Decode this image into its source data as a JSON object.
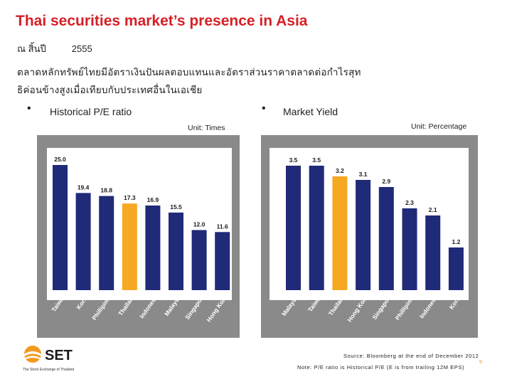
{
  "title": "Thai securities market’s presence in Asia",
  "date_prefix": "ณ สิ้นปี",
  "date_year": "2555",
  "thai_line1": "ตลาดหลักทรัพย์ไทยมีอัตราเงินปันผลตอบแทนและอัตราส่วนราคาตลาดต่อกำไรสุท",
  "thai_line2": "ธิค่อนข้างสูงเมื่อเทียบกับประเทศอื่นในเอเชีย",
  "left_heading": "Historical P/E ratio",
  "right_heading": "Market Yield",
  "left_unit": "Unit: Times",
  "right_unit": "Unit: Percentage",
  "footer_source": "Source: Bloomberg at the end of December 2012",
  "footer_note": "Note: P/E ratio is Historical P/E (E is from trailing 12M EPS)",
  "page_number": "9",
  "logo_text": "SET",
  "logo_tagline": "The Stock Exchange of Thailand",
  "colors": {
    "title": "#d52027",
    "panel": "#8a8a8a",
    "bar": "#1f2a78",
    "highlight": "#f7a823",
    "logo_orange": "#f29a1f"
  },
  "chart_data": [
    {
      "type": "bar",
      "title": "Historical P/E ratio",
      "unit": "Unit: Times",
      "categories": [
        "Taiwan",
        "Korea",
        "Phillipines",
        "Thailand",
        "Indonesia",
        "Malaysia",
        "Singapore",
        "Hong Kong"
      ],
      "values": [
        25.0,
        19.4,
        18.8,
        17.3,
        16.9,
        15.5,
        12.0,
        11.6
      ],
      "labels": [
        "25.0",
        "19.4",
        "18.8",
        "17.3",
        "16.9",
        "15.5",
        "12.0",
        "11.6"
      ],
      "highlight": "Thailand",
      "ylim": [
        0,
        25
      ]
    },
    {
      "type": "bar",
      "title": "Market Yield",
      "unit": "Unit: Percentage",
      "categories": [
        "Malaysia",
        "Taiwan",
        "Thailand",
        "Hong Kong",
        "Singapore",
        "Phillipines",
        "Indonesia",
        "Korea"
      ],
      "values": [
        3.5,
        3.5,
        3.2,
        3.1,
        2.9,
        2.3,
        2.1,
        1.2
      ],
      "labels": [
        "3.5",
        "3.5",
        "3.2",
        "3.1",
        "2.9",
        "2.3",
        "2.1",
        "1.2"
      ],
      "highlight": "Thailand",
      "ylim": [
        0,
        3.5
      ]
    }
  ]
}
